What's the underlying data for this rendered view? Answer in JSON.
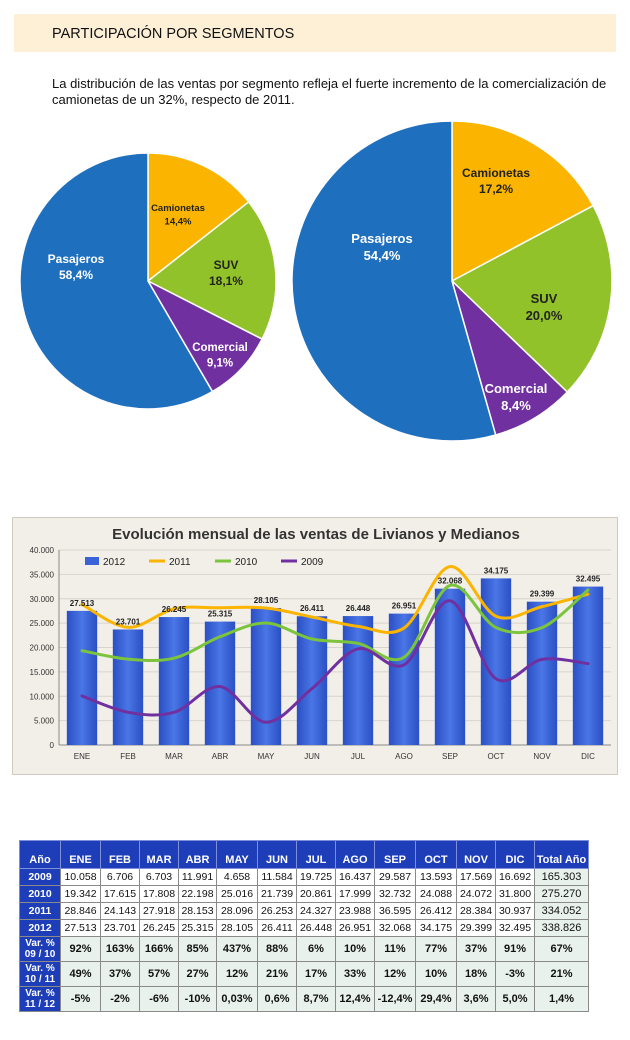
{
  "header": {
    "title": "PARTICIPACIÓN POR SEGMENTOS"
  },
  "intro": {
    "text": "La distribución de las ventas por segmento refleja el fuerte incremento de la comercialización de camionetas de un 32%, respecto de 2011."
  },
  "colors": {
    "pasajeros": "#1f6fbf",
    "camionetas": "#fbb400",
    "suv": "#92c229",
    "comercial": "#7130a0",
    "bar2012": "#3a63da",
    "line2011": "#fbb400",
    "line2010": "#7bc43c",
    "line2009": "#7030a0",
    "table_header": "#1e3eb9"
  },
  "chart_data": [
    {
      "type": "pie",
      "title": "",
      "slices": [
        {
          "label": "Camionetas",
          "value_text": "14,4%",
          "value": 14.4,
          "color_key": "camionetas"
        },
        {
          "label": "SUV",
          "value_text": "18,1%",
          "value": 18.1,
          "color_key": "suv"
        },
        {
          "label": "Comercial",
          "value_text": "9,1%",
          "value": 9.1,
          "color_key": "comercial"
        },
        {
          "label": "Pasajeros",
          "value_text": "58,4%",
          "value": 58.4,
          "color_key": "pasajeros"
        }
      ]
    },
    {
      "type": "pie",
      "title": "",
      "slices": [
        {
          "label": "Camionetas",
          "value_text": "17,2%",
          "value": 17.2,
          "color_key": "camionetas"
        },
        {
          "label": "SUV",
          "value_text": "20,0%",
          "value": 20.0,
          "color_key": "suv"
        },
        {
          "label": "Comercial",
          "value_text": "8,4%",
          "value": 8.4,
          "color_key": "comercial"
        },
        {
          "label": "Pasajeros",
          "value_text": "54,4%",
          "value": 54.4,
          "color_key": "pasajeros"
        }
      ]
    },
    {
      "type": "bar",
      "title": "Evolución mensual de las ventas de Livianos y Medianos",
      "categories": [
        "ENE",
        "FEB",
        "MAR",
        "ABR",
        "MAY",
        "JUN",
        "JUL",
        "AGO",
        "SEP",
        "OCT",
        "NOV",
        "DIC"
      ],
      "ylim": [
        0,
        40000
      ],
      "yticks": [
        0,
        5000,
        10000,
        15000,
        20000,
        25000,
        30000,
        35000,
        40000
      ],
      "ytick_labels": [
        "0",
        "5.000",
        "10.000",
        "15.000",
        "20.000",
        "25.000",
        "30.000",
        "35.000",
        "40.000"
      ],
      "legend": [
        "2012",
        "2011",
        "2010",
        "2009"
      ],
      "legend_position": "top",
      "bars": {
        "name": "2012",
        "values": [
          27513,
          23701,
          26245,
          25315,
          28105,
          26411,
          26448,
          26951,
          32068,
          34175,
          29399,
          32495
        ],
        "labels": [
          "27.513",
          "23.701",
          "26.245",
          "25.315",
          "28.105",
          "26.411",
          "26.448",
          "26.951",
          "32.068",
          "34.175",
          "29.399",
          "32.495"
        ]
      },
      "series": [
        {
          "name": "2011",
          "values": [
            28846,
            24143,
            27918,
            28153,
            28096,
            26253,
            24327,
            23988,
            36595,
            26412,
            28384,
            30937
          ]
        },
        {
          "name": "2010",
          "values": [
            19342,
            17615,
            17808,
            22198,
            25016,
            21739,
            20861,
            17999,
            32732,
            24088,
            24072,
            31800
          ]
        },
        {
          "name": "2009",
          "values": [
            10058,
            6706,
            6703,
            11991,
            4658,
            11584,
            19725,
            16437,
            29587,
            13593,
            17569,
            16692
          ]
        }
      ]
    },
    {
      "type": "table",
      "columns": [
        "Año",
        "ENE",
        "FEB",
        "MAR",
        "ABR",
        "MAY",
        "JUN",
        "JUL",
        "AGO",
        "SEP",
        "OCT",
        "NOV",
        "DIC",
        "Total Año"
      ],
      "rows": [
        {
          "label": "2009",
          "cells": [
            "10.058",
            "6.706",
            "6.703",
            "11.991",
            "4.658",
            "11.584",
            "19.725",
            "16.437",
            "29.587",
            "13.593",
            "17.569",
            "16.692",
            "165.303"
          ]
        },
        {
          "label": "2010",
          "cells": [
            "19.342",
            "17.615",
            "17.808",
            "22.198",
            "25.016",
            "21.739",
            "20.861",
            "17.999",
            "32.732",
            "24.088",
            "24.072",
            "31.800",
            "275.270"
          ]
        },
        {
          "label": "2011",
          "cells": [
            "28.846",
            "24.143",
            "27.918",
            "28.153",
            "28.096",
            "26.253",
            "24.327",
            "23.988",
            "36.595",
            "26.412",
            "28.384",
            "30.937",
            "334.052"
          ]
        },
        {
          "label": "2012",
          "cells": [
            "27.513",
            "23.701",
            "26.245",
            "25.315",
            "28.105",
            "26.411",
            "26.448",
            "26.951",
            "32.068",
            "34.175",
            "29.399",
            "32.495",
            "338.826"
          ]
        },
        {
          "label": "Var. % 09 / 10",
          "var": true,
          "cells": [
            "92%",
            "163%",
            "166%",
            "85%",
            "437%",
            "88%",
            "6%",
            "10%",
            "11%",
            "77%",
            "37%",
            "91%",
            "67%"
          ]
        },
        {
          "label": "Var. % 10 / 11",
          "var": true,
          "cells": [
            "49%",
            "37%",
            "57%",
            "27%",
            "12%",
            "21%",
            "17%",
            "33%",
            "12%",
            "10%",
            "18%",
            "-3%",
            "21%"
          ]
        },
        {
          "label": "Var. % 11 / 12",
          "var": true,
          "cells": [
            "-5%",
            "-2%",
            "-6%",
            "-10%",
            "0,03%",
            "0,6%",
            "8,7%",
            "12,4%",
            "-12,4%",
            "29,4%",
            "3,6%",
            "5,0%",
            "1,4%"
          ]
        }
      ]
    }
  ]
}
